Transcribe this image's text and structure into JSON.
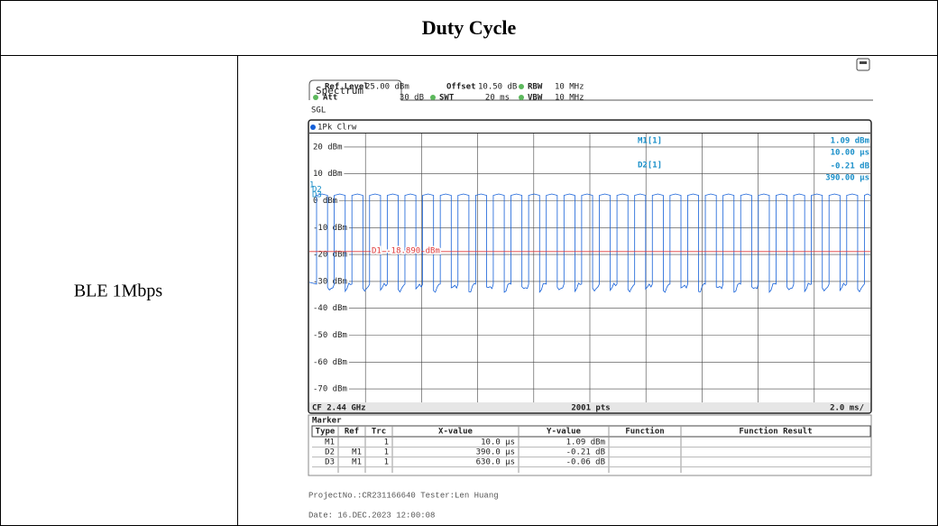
{
  "header": {
    "title": "Duty Cycle"
  },
  "row": {
    "label": "BLE 1Mbps"
  },
  "screenshot": {
    "tab": "Spectrum",
    "settings": {
      "ref_level_label": "Ref Level",
      "ref_level": "25.00 dBm",
      "offset_label": "Offset",
      "offset": "10.50 dB",
      "rbw_label": "RBW",
      "rbw": "10 MHz",
      "att_label": "Att",
      "att": "30 dB",
      "swt_label": "SWT",
      "swt": "20 ms",
      "vbw_label": "VBW",
      "vbw": "10 MHz",
      "mode": "SGL"
    },
    "trace": "1Pk Clrw",
    "y_labels": [
      "20 dBm",
      "10 dBm",
      "0 dBm",
      "-10 dBm",
      "-20 dBm",
      "-30 dBm",
      "-40 dBm",
      "-50 dBm",
      "-60 dBm",
      "-70 dBm"
    ],
    "readout": {
      "m1": "M1[1]",
      "m1_y": "1.09 dBm",
      "m1_x": "10.00 µs",
      "d2": "D2[1]",
      "d2_y": "-0.21 dB",
      "d2_x": "390.00 µs"
    },
    "marker_flags": [
      "1",
      "D2",
      "D3"
    ],
    "line_label": "D1 -18.890 dBm",
    "bar": {
      "cf": "CF 2.44 GHz",
      "pts": "2001 pts",
      "span": "2.0 ms/"
    },
    "marker_table": {
      "title": "Marker",
      "columns": [
        "Type",
        "Ref",
        "Trc",
        "X-value",
        "Y-value",
        "Function",
        "Function Result"
      ],
      "rows": [
        {
          "type": "M1",
          "trc": "1",
          "x": "10.0 µs",
          "y": "1.09 dBm"
        },
        {
          "type": "D2",
          "ref": "M1",
          "trc": "1",
          "x": "390.0 µs",
          "y": "-0.21 dB"
        },
        {
          "type": "D3",
          "ref": "M1",
          "trc": "1",
          "x": "630.0 µs",
          "y": "-0.06 dB"
        }
      ]
    }
  },
  "footer": {
    "project": "ProjectNo.:CR231166640  Tester:Len Huang",
    "date": "Date: 16.DEC.2023  12:00:08"
  }
}
